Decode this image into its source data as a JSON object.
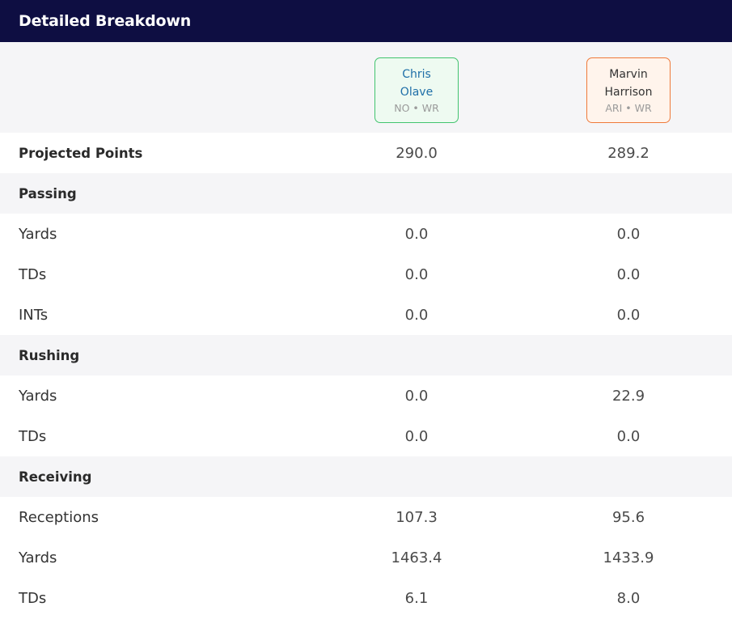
{
  "header": {
    "title": "Detailed Breakdown"
  },
  "players": [
    {
      "first": "Chris",
      "last": "Olave",
      "meta": "NO • WR",
      "accent": "#42c46e"
    },
    {
      "first": "Marvin",
      "last": "Harrison",
      "meta": "ARI • WR",
      "accent": "#ef7a3a"
    }
  ],
  "rows": [
    {
      "type": "stat",
      "label": "Projected Points",
      "bold": true,
      "p1": "290.0",
      "p2": "289.2"
    },
    {
      "type": "section",
      "label": "Passing"
    },
    {
      "type": "stat",
      "label": "Yards",
      "p1": "0.0",
      "p2": "0.0"
    },
    {
      "type": "stat",
      "label": "TDs",
      "p1": "0.0",
      "p2": "0.0"
    },
    {
      "type": "stat",
      "label": "INTs",
      "p1": "0.0",
      "p2": "0.0"
    },
    {
      "type": "section",
      "label": "Rushing"
    },
    {
      "type": "stat",
      "label": "Yards",
      "p1": "0.0",
      "p2": "22.9"
    },
    {
      "type": "stat",
      "label": "TDs",
      "p1": "0.0",
      "p2": "0.0"
    },
    {
      "type": "section",
      "label": "Receiving"
    },
    {
      "type": "stat",
      "label": "Receptions",
      "p1": "107.3",
      "p2": "95.6"
    },
    {
      "type": "stat",
      "label": "Yards",
      "p1": "1463.4",
      "p2": "1433.9"
    },
    {
      "type": "stat",
      "label": "TDs",
      "p1": "6.1",
      "p2": "8.0"
    }
  ]
}
